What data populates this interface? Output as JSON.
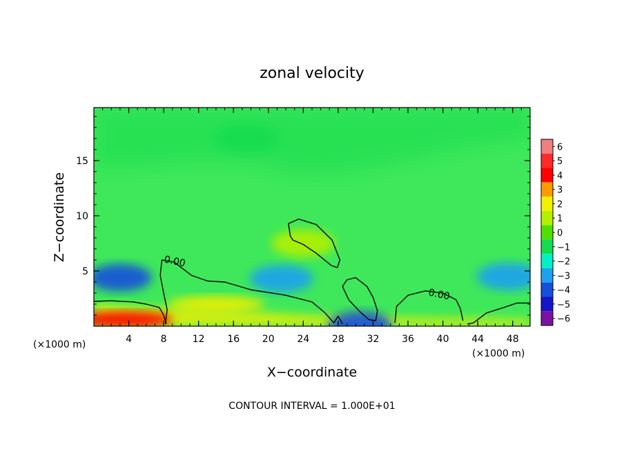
{
  "chart_data": {
    "type": "heatmap",
    "title": "zonal velocity",
    "xlabel": "X−coordinate",
    "ylabel": "Z−coordinate",
    "x_unit_left": "(×1000 m)",
    "x_unit_right": "(×1000 m)",
    "footer": "CONTOUR INTERVAL = 1.000E+01",
    "xlim": [
      0,
      50
    ],
    "ylim": [
      0,
      19.8
    ],
    "x_ticks": [
      4,
      8,
      12,
      16,
      20,
      24,
      28,
      32,
      36,
      40,
      44,
      48
    ],
    "y_ticks": [
      5,
      10,
      15
    ],
    "colorbar": {
      "levels": [
        6,
        5,
        4,
        3,
        2,
        1,
        0,
        -1,
        -2,
        -3,
        -4,
        -5,
        -6
      ],
      "colors": [
        "#f07f7f",
        "#ff2a2a",
        "#ff0000",
        "#ff9a00",
        "#f0f000",
        "#b4f000",
        "#50e000",
        "#14dc50",
        "#00f0c8",
        "#1ea0f0",
        "#1450dc",
        "#1414c8",
        "#7814a0"
      ]
    },
    "contour_label": "0.00",
    "contour_labels": [
      {
        "text": "0.00",
        "x": 9.2,
        "z": 5.6
      },
      {
        "text": "0.00",
        "x": 39.5,
        "z": 2.6
      }
    ],
    "field_features": [
      {
        "x": 3.0,
        "z": 4.4,
        "value": -4
      },
      {
        "x": 47.5,
        "z": 4.5,
        "value": -3
      },
      {
        "x": 21.5,
        "z": 4.3,
        "value": -3
      },
      {
        "x": 3.5,
        "z": 0.6,
        "value": 4
      },
      {
        "x": 14.0,
        "z": 2.0,
        "value": 2
      },
      {
        "x": 30.5,
        "z": 0.1,
        "value": -4
      },
      {
        "x": 17.5,
        "z": 17.0,
        "value": -1
      },
      {
        "x": 24.0,
        "z": 7.5,
        "value": 0.5
      }
    ],
    "zero_contours": [
      [
        [
          0,
          2.25
        ],
        [
          2,
          2.3
        ],
        [
          4.5,
          2.2
        ],
        [
          6,
          2.0
        ],
        [
          7.5,
          1.7
        ],
        [
          8,
          1.0
        ],
        [
          8.3,
          0.2
        ]
      ],
      [
        [
          8.2,
          0.2
        ],
        [
          8.4,
          1.5
        ],
        [
          8.0,
          3.0
        ],
        [
          7.6,
          4.6
        ],
        [
          7.8,
          6.0
        ],
        [
          9.2,
          5.8
        ],
        [
          11.2,
          4.6
        ],
        [
          13,
          4.1
        ],
        [
          15,
          4.0
        ],
        [
          18,
          3.3
        ],
        [
          22,
          2.8
        ],
        [
          25,
          2.2
        ],
        [
          26.5,
          1.2
        ],
        [
          27.5,
          0.3
        ],
        [
          28,
          0.9
        ],
        [
          28.5,
          0.2
        ]
      ],
      [
        [
          22.5,
          8.2
        ],
        [
          22.3,
          9.3
        ],
        [
          23.5,
          9.7
        ],
        [
          25.5,
          9.2
        ],
        [
          27.3,
          7.8
        ],
        [
          28.2,
          6.0
        ],
        [
          27.9,
          5.3
        ],
        [
          27.2,
          5.5
        ],
        [
          25.5,
          6.6
        ],
        [
          24.0,
          7.4
        ],
        [
          22.8,
          7.8
        ],
        [
          22.5,
          8.2
        ]
      ],
      [
        [
          28.5,
          3.6
        ],
        [
          29,
          4.2
        ],
        [
          30,
          4.4
        ],
        [
          31.3,
          3.6
        ],
        [
          32.0,
          2.6
        ],
        [
          32.5,
          1.4
        ],
        [
          32.3,
          0.5
        ],
        [
          31.5,
          0.6
        ],
        [
          30.5,
          1.3
        ],
        [
          29.2,
          2.4
        ],
        [
          28.5,
          3.6
        ]
      ],
      [
        [
          34.5,
          0.3
        ],
        [
          34.7,
          1.8
        ],
        [
          36,
          2.8
        ],
        [
          38,
          3.2
        ],
        [
          40,
          3.0
        ],
        [
          41.5,
          2.4
        ],
        [
          42.0,
          1.6
        ],
        [
          42.3,
          0.5
        ]
      ],
      [
        [
          42.8,
          0.2
        ],
        [
          43.5,
          0.3
        ],
        [
          45,
          1.2
        ],
        [
          47,
          1.7
        ],
        [
          48.5,
          2.1
        ],
        [
          50,
          2.1
        ]
      ]
    ]
  }
}
